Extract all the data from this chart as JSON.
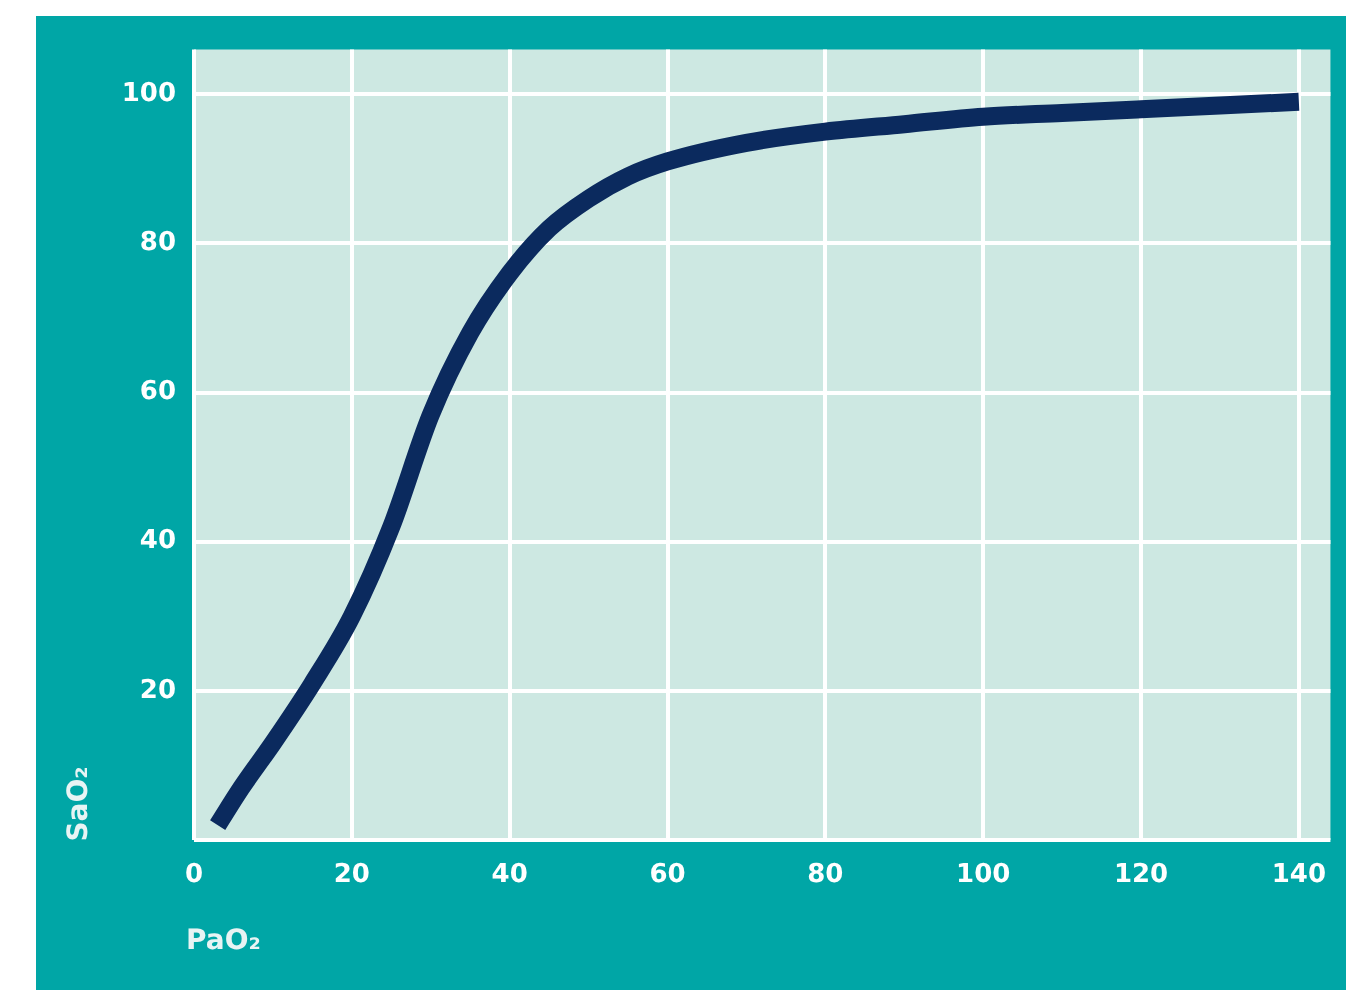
{
  "chart_data": {
    "type": "line",
    "xlabel": "PaO₂",
    "ylabel": "SaO₂",
    "x": [
      3,
      6,
      10,
      15,
      20,
      25,
      30,
      35,
      40,
      45,
      50,
      55,
      60,
      70,
      80,
      90,
      100,
      110,
      120,
      130,
      140
    ],
    "series": [
      {
        "color": "#0b2a5e",
        "values": [
          2,
          7,
          13,
          21,
          30,
          42,
          57,
          68,
          76,
          82,
          86,
          89,
          91,
          93.5,
          95,
          96,
          97,
          97.5,
          98,
          98.5,
          99
        ]
      }
    ],
    "xlim": [
      0,
      144
    ],
    "ylim": [
      0,
      106
    ],
    "xticks": [
      0,
      20,
      40,
      60,
      80,
      100,
      120,
      140
    ],
    "yticks": [
      {
        "value": 0,
        "label": null
      },
      20,
      40,
      60,
      80,
      100
    ],
    "grid": true,
    "legend": false,
    "marker": "none",
    "line_style": "solid"
  }
}
